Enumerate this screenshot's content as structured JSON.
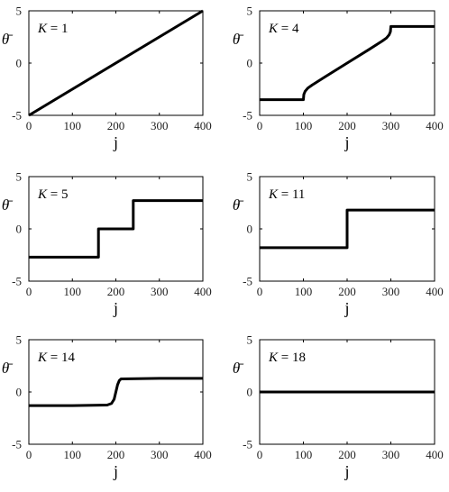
{
  "chart_data": [
    {
      "type": "line",
      "annotation": {
        "var": "K",
        "value": "1"
      },
      "xlabel": "j",
      "ylabel": "θ̄",
      "xlim": [
        0,
        400
      ],
      "ylim": [
        -5,
        5
      ],
      "xticks": [
        "0",
        "100",
        "200",
        "300",
        "400"
      ],
      "yticks": [
        "5",
        "0",
        "-5"
      ],
      "series": [
        {
          "x": [
            0,
            400
          ],
          "y": [
            -5,
            5
          ]
        }
      ]
    },
    {
      "type": "line",
      "annotation": {
        "var": "K",
        "value": "4"
      },
      "xlabel": "j",
      "ylabel": "θ̄",
      "xlim": [
        0,
        400
      ],
      "ylim": [
        -5,
        5
      ],
      "xticks": [
        "0",
        "100",
        "200",
        "300",
        "400"
      ],
      "yticks": [
        "5",
        "0",
        "-5"
      ],
      "series": [
        {
          "x": [
            0,
            100,
            101,
            104,
            110,
            120,
            150,
            200,
            250,
            280,
            290,
            296,
            299,
            300,
            400
          ],
          "y": [
            -3.5,
            -3.5,
            -3.0,
            -2.7,
            -2.4,
            -2.1,
            -1.3,
            0.0,
            1.3,
            2.1,
            2.4,
            2.7,
            3.0,
            3.5,
            3.5
          ]
        }
      ]
    },
    {
      "type": "line",
      "annotation": {
        "var": "K",
        "value": "5"
      },
      "xlabel": "j",
      "ylabel": "θ̄",
      "xlim": [
        0,
        400
      ],
      "ylim": [
        -5,
        5
      ],
      "xticks": [
        "0",
        "100",
        "200",
        "300",
        "400"
      ],
      "yticks": [
        "5",
        "0",
        "-5"
      ],
      "series": [
        {
          "x": [
            0,
            160,
            160,
            240,
            240,
            400
          ],
          "y": [
            -2.7,
            -2.7,
            0,
            0,
            2.7,
            2.7
          ]
        }
      ]
    },
    {
      "type": "line",
      "annotation": {
        "var": "K",
        "value": "11"
      },
      "xlabel": "j",
      "ylabel": "θ̄",
      "xlim": [
        0,
        400
      ],
      "ylim": [
        -5,
        5
      ],
      "xticks": [
        "0",
        "100",
        "200",
        "300",
        "400"
      ],
      "yticks": [
        "5",
        "0",
        "-5"
      ],
      "series": [
        {
          "x": [
            0,
            200,
            200,
            400
          ],
          "y": [
            -1.8,
            -1.8,
            1.8,
            1.8
          ]
        }
      ]
    },
    {
      "type": "line",
      "annotation": {
        "var": "K",
        "value": "14"
      },
      "xlabel": "j",
      "ylabel": "θ̄",
      "xlim": [
        0,
        400
      ],
      "ylim": [
        -5,
        5
      ],
      "xticks": [
        "0",
        "100",
        "200",
        "300",
        "400"
      ],
      "yticks": [
        "5",
        "0",
        "-5"
      ],
      "series": [
        {
          "x": [
            0,
            100,
            180,
            190,
            196,
            200,
            204,
            208,
            212,
            300,
            400
          ],
          "y": [
            -1.3,
            -1.3,
            -1.25,
            -1.1,
            -0.7,
            0,
            0.7,
            1.1,
            1.25,
            1.3,
            1.3
          ]
        }
      ]
    },
    {
      "type": "line",
      "annotation": {
        "var": "K",
        "value": "18"
      },
      "xlabel": "j",
      "ylabel": "θ̄",
      "xlim": [
        0,
        400
      ],
      "ylim": [
        -5,
        5
      ],
      "xticks": [
        "0",
        "100",
        "200",
        "300",
        "400"
      ],
      "yticks": [
        "5",
        "0",
        "-5"
      ],
      "series": [
        {
          "x": [
            0,
            400
          ],
          "y": [
            0,
            0
          ]
        }
      ]
    }
  ]
}
